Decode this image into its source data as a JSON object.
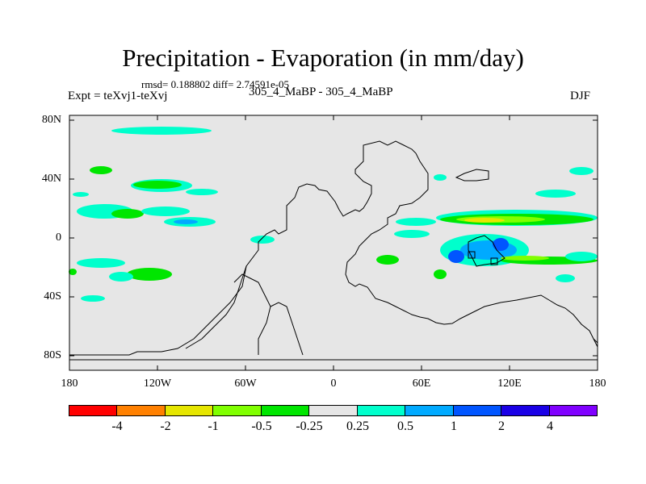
{
  "plot": {
    "title": "Precipitation - Evaporation (in mm/day)",
    "stats_line": "rmsd= 0.188802 diff= 2.74591e-05",
    "expt_label": "Expt = teXvj1-teXvj",
    "case_label": "305_4_MaBP - 305_4_MaBP",
    "season": "DJF"
  },
  "axes": {
    "y_ticks": [
      "80N",
      "40N",
      "0",
      "40S",
      "80S"
    ],
    "x_ticks": [
      "180",
      "120W",
      "60W",
      "0",
      "60E",
      "120E",
      "180"
    ]
  },
  "colorbar": {
    "labels": [
      "-4",
      "-2",
      "-1",
      "-0.5",
      "-0.25",
      "0.25",
      "0.5",
      "1",
      "2",
      "4"
    ],
    "colors": [
      "#ff0000",
      "#ff8000",
      "#e6e600",
      "#80ff00",
      "#00e600",
      "#e6e6e6",
      "#00ffcc",
      "#00aaff",
      "#0055ff",
      "#1a00e6",
      "#8000ff"
    ]
  }
}
